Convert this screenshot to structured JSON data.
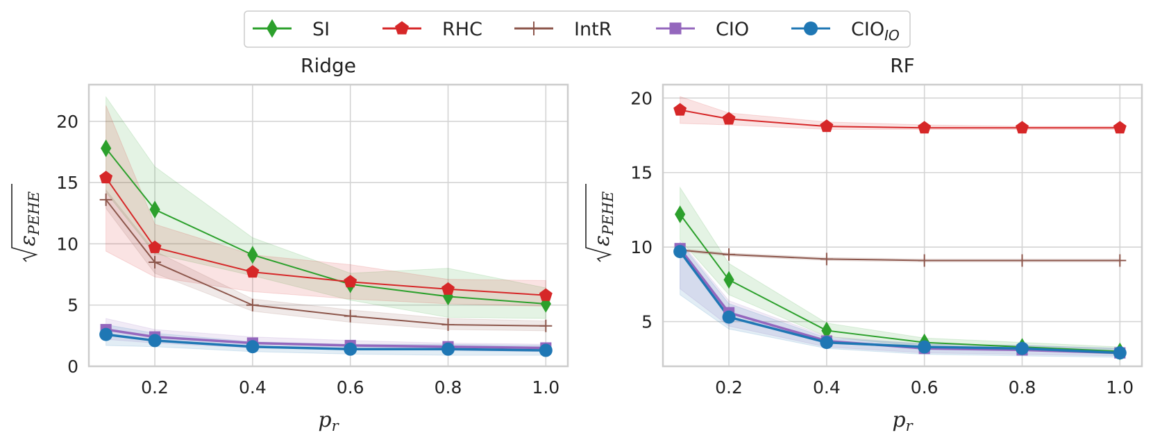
{
  "legend": [
    {
      "key": "SI",
      "label": "SI",
      "sub": "",
      "color": "#2ca02c",
      "marker": "diamond"
    },
    {
      "key": "RHC",
      "label": "RHC",
      "sub": "",
      "color": "#d62728",
      "marker": "pentagon"
    },
    {
      "key": "IntR",
      "label": "IntR",
      "sub": "",
      "color": "#8c564b",
      "marker": "plus"
    },
    {
      "key": "CIO",
      "label": "CIO",
      "sub": "",
      "color": "#9467bd",
      "marker": "square"
    },
    {
      "key": "CIO_IO",
      "label": "CIO",
      "sub": "IO",
      "color": "#1f77b4",
      "marker": "circle"
    }
  ],
  "chart_data": [
    {
      "type": "line",
      "title": "Ridge",
      "xlabel": "p",
      "xlabel_sub": "r",
      "ylabel": "√ε",
      "ylabel_sub": "PEHE",
      "x": [
        0.1,
        0.2,
        0.4,
        0.6,
        0.8,
        1.0
      ],
      "xticks": [
        0.2,
        0.4,
        0.6,
        0.8,
        1.0
      ],
      "xtick_labels": [
        "0.2",
        "0.4",
        "0.6",
        "0.8",
        "1.0"
      ],
      "xlim": [
        0.065,
        1.045
      ],
      "yticks": [
        0,
        5,
        10,
        15,
        20
      ],
      "ytick_labels": [
        "0",
        "5",
        "10",
        "15",
        "20"
      ],
      "ylim": [
        0,
        23
      ],
      "grid": true,
      "series": [
        {
          "name": "SI",
          "values": [
            17.8,
            12.8,
            9.1,
            6.7,
            5.7,
            5.1
          ],
          "lower": [
            14.2,
            9.2,
            7.4,
            5.4,
            4.0,
            3.9
          ],
          "upper": [
            22.0,
            16.3,
            10.5,
            7.6,
            8.0,
            6.4
          ]
        },
        {
          "name": "RHC",
          "values": [
            15.4,
            9.7,
            7.7,
            6.9,
            6.3,
            5.8
          ],
          "lower": [
            9.4,
            7.3,
            6.1,
            5.5,
            5.1,
            4.9
          ],
          "upper": [
            21.3,
            11.6,
            9.1,
            8.3,
            7.1,
            7.0
          ]
        },
        {
          "name": "IntR",
          "values": [
            13.6,
            8.5,
            5.0,
            4.1,
            3.4,
            3.3
          ],
          "lower": [
            12.9,
            7.6,
            4.5,
            3.6,
            3.0,
            2.9
          ],
          "upper": [
            14.4,
            9.4,
            5.5,
            4.6,
            3.9,
            3.7
          ]
        },
        {
          "name": "CIO",
          "values": [
            3.0,
            2.4,
            1.9,
            1.7,
            1.6,
            1.5
          ],
          "lower": [
            2.2,
            1.9,
            1.5,
            1.4,
            1.3,
            1.2
          ],
          "upper": [
            3.9,
            3.0,
            2.4,
            2.1,
            1.9,
            1.8
          ]
        },
        {
          "name": "CIO_IO",
          "values": [
            2.6,
            2.1,
            1.6,
            1.4,
            1.4,
            1.3
          ],
          "lower": [
            1.7,
            1.6,
            1.2,
            1.0,
            0.9,
            0.9
          ],
          "upper": [
            3.4,
            2.7,
            2.0,
            1.8,
            1.8,
            1.7
          ]
        }
      ]
    },
    {
      "type": "line",
      "title": "RF",
      "xlabel": "p",
      "xlabel_sub": "r",
      "ylabel": "√ε",
      "ylabel_sub": "PEHE",
      "x": [
        0.1,
        0.2,
        0.4,
        0.6,
        0.8,
        1.0
      ],
      "xticks": [
        0.2,
        0.4,
        0.6,
        0.8,
        1.0
      ],
      "xtick_labels": [
        "0.2",
        "0.4",
        "0.6",
        "0.8",
        "1.0"
      ],
      "xlim": [
        0.065,
        1.045
      ],
      "yticks": [
        5,
        10,
        15,
        20
      ],
      "ytick_labels": [
        "5",
        "10",
        "15",
        "20"
      ],
      "ylim": [
        2.0,
        20.9
      ],
      "grid": true,
      "series": [
        {
          "name": "SI",
          "values": [
            12.2,
            7.8,
            4.4,
            3.6,
            3.3,
            3.0
          ],
          "lower": [
            10.5,
            6.8,
            4.0,
            3.3,
            3.1,
            2.8
          ],
          "upper": [
            14.0,
            8.9,
            4.9,
            3.9,
            3.6,
            3.3
          ]
        },
        {
          "name": "RHC",
          "values": [
            19.2,
            18.6,
            18.1,
            18.0,
            18.0,
            18.0
          ],
          "lower": [
            18.3,
            18.2,
            17.9,
            17.9,
            17.9,
            17.9
          ],
          "upper": [
            20.1,
            19.0,
            18.4,
            18.2,
            18.1,
            18.1
          ]
        },
        {
          "name": "IntR",
          "values": [
            9.8,
            9.5,
            9.2,
            9.1,
            9.1,
            9.1
          ],
          "lower": [
            9.7,
            9.4,
            9.1,
            9.0,
            9.0,
            9.0
          ],
          "upper": [
            9.9,
            9.6,
            9.3,
            9.2,
            9.2,
            9.2
          ]
        },
        {
          "name": "CIO",
          "values": [
            9.9,
            5.6,
            3.7,
            3.2,
            3.1,
            2.9
          ],
          "lower": [
            7.2,
            4.7,
            3.3,
            2.9,
            2.8,
            2.7
          ],
          "upper": [
            10.4,
            6.4,
            4.0,
            3.5,
            3.4,
            3.2
          ]
        },
        {
          "name": "CIO_IO",
          "values": [
            9.7,
            5.3,
            3.6,
            3.3,
            3.2,
            2.9
          ],
          "lower": [
            6.8,
            4.5,
            3.2,
            2.8,
            2.7,
            2.6
          ],
          "upper": [
            10.3,
            6.2,
            3.9,
            3.5,
            3.4,
            3.2
          ]
        }
      ]
    }
  ]
}
